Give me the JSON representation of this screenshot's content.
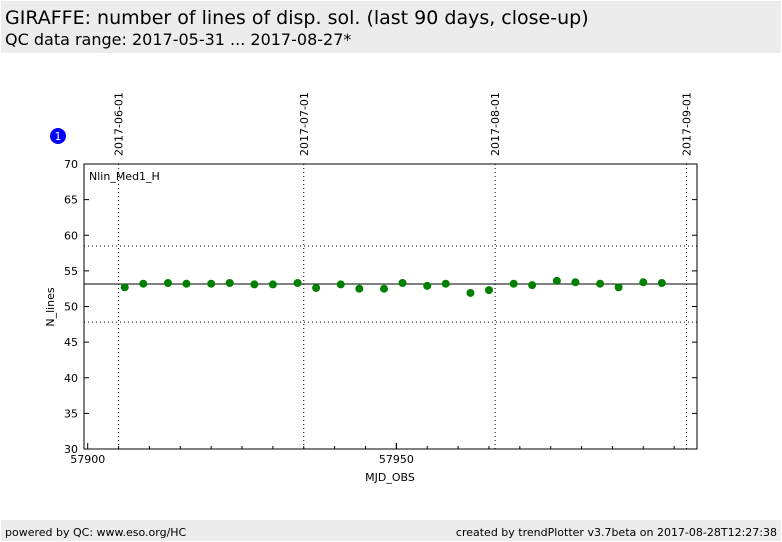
{
  "header": {
    "title": "GIRAFFE: number of lines of disp. sol. (last 90 days, close-up)",
    "subtitle": "QC data range: 2017-05-31 ... 2017-08-27*"
  },
  "footer": {
    "left": "powered by QC: www.eso.org/HC",
    "right": "created by trendPlotter v3.7beta on 2017-08-28T12:27:38"
  },
  "badge": "1",
  "chart_data": {
    "type": "scatter",
    "legend_label": "Nlin_Med1_H",
    "xlabel": "MJD_OBS",
    "ylabel": "N_lines",
    "xlim": [
      57899.4,
      57998.7
    ],
    "ylim": [
      30,
      70
    ],
    "xticks": [
      57900,
      57950
    ],
    "yticks": [
      30,
      35,
      40,
      45,
      50,
      55,
      60,
      65,
      70
    ],
    "date_ticks": [
      {
        "mjd": 57905,
        "label": "2017-06-01"
      },
      {
        "mjd": 57935,
        "label": "2017-07-01"
      },
      {
        "mjd": 57966,
        "label": "2017-08-01"
      },
      {
        "mjd": 57997,
        "label": "2017-09-01"
      }
    ],
    "mean": 53.16,
    "upper": 58.5,
    "lower": 47.8,
    "point_color": "#008000",
    "x": [
      57906,
      57909,
      57913,
      57916,
      57920,
      57923,
      57927,
      57930,
      57934,
      57937,
      57941,
      57944,
      57948,
      57951,
      57955,
      57958,
      57962,
      57965,
      57969,
      57972,
      57976,
      57979,
      57983,
      57986,
      57990,
      57993
    ],
    "y": [
      52.7,
      53.2,
      53.3,
      53.2,
      53.2,
      53.3,
      53.1,
      53.1,
      53.3,
      52.6,
      53.1,
      52.5,
      52.5,
      53.3,
      52.9,
      53.2,
      51.9,
      52.3,
      53.2,
      53.0,
      53.6,
      53.4,
      53.2,
      52.7,
      53.4,
      53.3
    ]
  }
}
